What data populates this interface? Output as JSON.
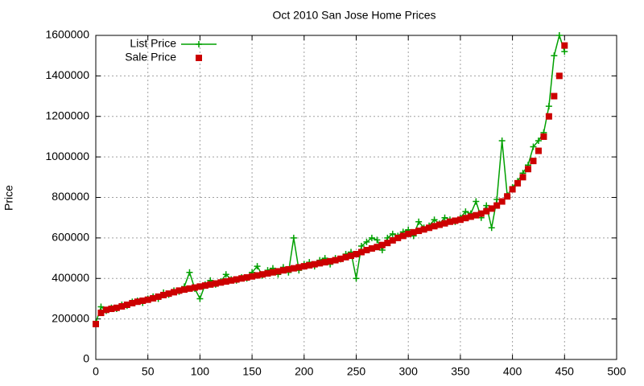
{
  "chart_data": {
    "type": "scatter",
    "title": "Oct 2010 San Jose Home Prices",
    "ylabel": "Price",
    "x": [
      0,
      5,
      10,
      15,
      20,
      25,
      30,
      35,
      40,
      45,
      50,
      55,
      60,
      65,
      70,
      75,
      80,
      85,
      90,
      95,
      100,
      105,
      110,
      115,
      120,
      125,
      130,
      135,
      140,
      145,
      150,
      155,
      160,
      165,
      170,
      175,
      180,
      185,
      190,
      195,
      200,
      205,
      210,
      215,
      220,
      225,
      230,
      235,
      240,
      245,
      250,
      255,
      260,
      265,
      270,
      275,
      280,
      285,
      290,
      295,
      300,
      305,
      310,
      315,
      320,
      325,
      330,
      335,
      340,
      345,
      350,
      355,
      360,
      365,
      370,
      375,
      380,
      385,
      390,
      395,
      400,
      405,
      410,
      415,
      420,
      425,
      430,
      435,
      440,
      445,
      450
    ],
    "series": [
      {
        "name": "List Price",
        "color": "#00a000",
        "marker": "plus",
        "line": true,
        "values": [
          180000,
          260000,
          240000,
          255000,
          250000,
          270000,
          265000,
          285000,
          290000,
          280000,
          300000,
          310000,
          300000,
          330000,
          320000,
          340000,
          335000,
          360000,
          430000,
          350000,
          300000,
          370000,
          390000,
          370000,
          385000,
          420000,
          395000,
          390000,
          405000,
          400000,
          430000,
          460000,
          415000,
          440000,
          450000,
          420000,
          455000,
          430000,
          600000,
          440000,
          470000,
          480000,
          460000,
          490000,
          500000,
          470000,
          500000,
          495000,
          520000,
          530000,
          400000,
          560000,
          580000,
          600000,
          590000,
          540000,
          600000,
          620000,
          610000,
          630000,
          640000,
          610000,
          680000,
          650000,
          660000,
          690000,
          670000,
          700000,
          690000,
          680000,
          700000,
          730000,
          720000,
          780000,
          700000,
          760000,
          650000,
          790000,
          1080000,
          810000,
          850000,
          880000,
          920000,
          960000,
          1050000,
          1080000,
          1120000,
          1250000,
          1500000,
          1600000,
          1520000
        ]
      },
      {
        "name": "Sale Price",
        "color": "#cc0000",
        "marker": "square",
        "line": false,
        "values": [
          175000,
          230000,
          245000,
          250000,
          255000,
          262000,
          270000,
          278000,
          285000,
          290000,
          295000,
          302000,
          310000,
          318000,
          325000,
          332000,
          340000,
          345000,
          350000,
          355000,
          360000,
          365000,
          370000,
          375000,
          380000,
          385000,
          390000,
          395000,
          400000,
          405000,
          410000,
          415000,
          420000,
          425000,
          430000,
          435000,
          440000,
          445000,
          450000,
          455000,
          460000,
          465000,
          470000,
          475000,
          480000,
          485000,
          490000,
          497000,
          505000,
          512000,
          520000,
          530000,
          540000,
          548000,
          555000,
          565000,
          575000,
          588000,
          600000,
          610000,
          620000,
          628000,
          635000,
          642000,
          650000,
          658000,
          665000,
          672000,
          680000,
          685000,
          690000,
          698000,
          705000,
          712000,
          720000,
          732000,
          745000,
          760000,
          780000,
          805000,
          840000,
          870000,
          900000,
          940000,
          980000,
          1030000,
          1100000,
          1200000,
          1300000,
          1400000,
          1550000
        ]
      }
    ],
    "xlim": [
      0,
      500
    ],
    "xticks": [
      0,
      50,
      100,
      150,
      200,
      250,
      300,
      350,
      400,
      450,
      500
    ],
    "ylim": [
      0,
      1600000
    ],
    "yticks": [
      0,
      200000,
      400000,
      600000,
      800000,
      1000000,
      1200000,
      1400000,
      1600000
    ],
    "grid": true,
    "legend": "top left"
  }
}
